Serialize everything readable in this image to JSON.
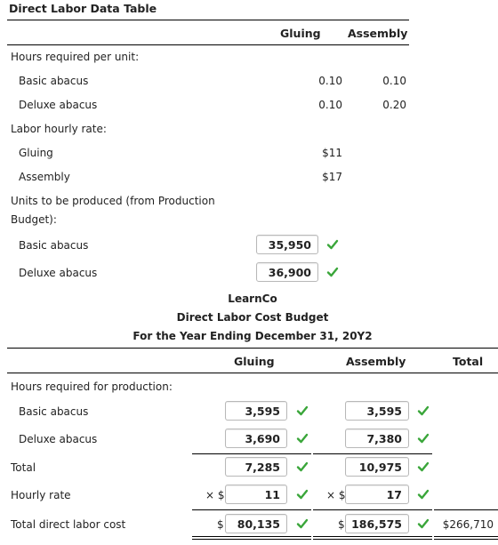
{
  "data_table": {
    "title": "Direct Labor Data Table",
    "col_gluing": "Gluing",
    "col_assembly": "Assembly",
    "hours_per_unit_label": "Hours required per unit:",
    "basic_label": "Basic abacus",
    "deluxe_label": "Deluxe abacus",
    "basic_gluing": "0.10",
    "basic_assembly": "0.10",
    "deluxe_gluing": "0.10",
    "deluxe_assembly": "0.20",
    "rate_label": "Labor hourly rate:",
    "rate_gluing_label": "Gluing",
    "rate_assembly_label": "Assembly",
    "rate_gluing": "$11",
    "rate_assembly": "$17",
    "units_label_line1": "Units to be produced (from Production",
    "units_label_line2": "Budget):",
    "units_basic_label": "Basic abacus",
    "units_deluxe_label": "Deluxe abacus",
    "units_basic": "35,950",
    "units_deluxe": "36,900"
  },
  "budget": {
    "company": "LearnCo",
    "title": "Direct Labor Cost Budget",
    "period": "For the Year Ending December 31, 20Y2",
    "col_gluing": "Gluing",
    "col_assembly": "Assembly",
    "col_total": "Total",
    "hours_label": "Hours required for production:",
    "basic_label": "Basic abacus",
    "deluxe_label": "Deluxe abacus",
    "total_label": "Total",
    "rate_label": "Hourly rate",
    "cost_label": "Total direct labor cost",
    "basic_gluing": "3,595",
    "basic_assembly": "3,595",
    "deluxe_gluing": "3,690",
    "deluxe_assembly": "7,380",
    "total_gluing": "7,285",
    "total_assembly": "10,975",
    "rate_prefix": "× $",
    "rate_gluing": "11",
    "rate_assembly": "17",
    "dollar": "$",
    "cost_gluing": "80,135",
    "cost_assembly": "186,575",
    "cost_total": "$266,710"
  },
  "colors": {
    "check": "#3aa63a",
    "border": "#b8b8b8"
  },
  "icons": {
    "check": "check-icon"
  }
}
